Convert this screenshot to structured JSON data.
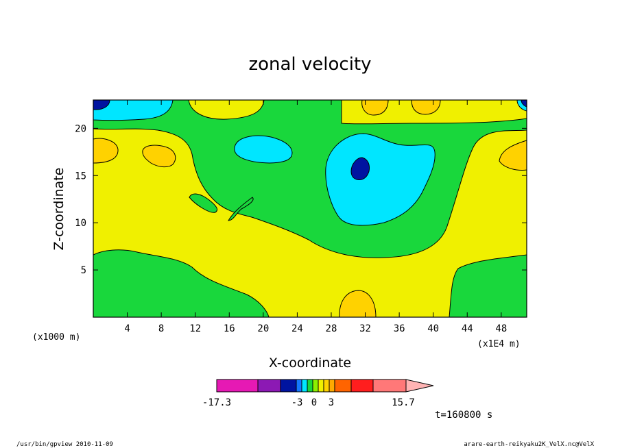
{
  "chart_data": {
    "type": "heatmap",
    "title": "zonal velocity",
    "xlabel": "X-coordinate",
    "ylabel": "Z-coordinate",
    "x_unit": "(x1E4 m)",
    "y_unit": "(x1000 m)",
    "xlim": [
      0,
      51
    ],
    "ylim": [
      0,
      23
    ],
    "x_ticks": [
      4,
      8,
      12,
      16,
      20,
      24,
      28,
      32,
      36,
      40,
      44,
      48
    ],
    "y_ticks": [
      5,
      10,
      15,
      20
    ],
    "colorbar": {
      "tick_labels": [
        "-17.3",
        "-3",
        "0",
        "3",
        "15.7"
      ],
      "colors": [
        "#e619b4",
        "#8c19b4",
        "#0014a0",
        "#1478ff",
        "#00e6ff",
        "#19d73c",
        "#8cf000",
        "#f0f000",
        "#ffd200",
        "#ffaa00",
        "#ff6400",
        "#ff1e1e",
        "#ff7878",
        "#ffb4b4"
      ]
    },
    "contour_regions": [
      {
        "level": "-3 to 0",
        "color": "#00e6ff"
      },
      {
        "level": "-5 to -3",
        "color": "#0014a0"
      },
      {
        "level": "0 to 1",
        "color": "#19d73c"
      },
      {
        "level": "1 to 2",
        "color": "#f0f000"
      },
      {
        "level": "2 to 3",
        "color": "#ffd200"
      }
    ],
    "time_label": "t=160800 s"
  },
  "footer": {
    "left": "/usr/bin/gpview  2010-11-09",
    "right": "arare-earth-reikyaku2K_VelX.nc@VelX"
  }
}
